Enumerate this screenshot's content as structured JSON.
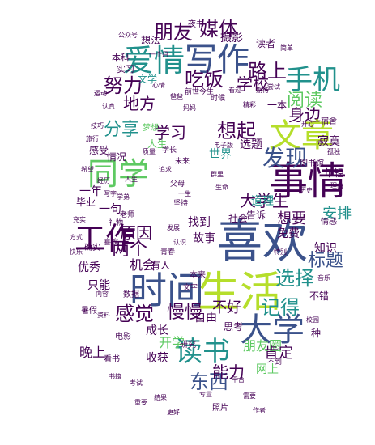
{
  "palette": {
    "dark_purple": "#440154",
    "indigo": "#3b528b",
    "teal": "#21918c",
    "green": "#5ec962",
    "yellow_green": "#b5de2b",
    "yellow": "#fde725"
  },
  "words": [
    {
      "text": "喜欢",
      "color": "#3b528b"
    },
    {
      "text": "事情",
      "color": "#440154"
    },
    {
      "text": "生活",
      "color": "#b5de2b"
    },
    {
      "text": "时间",
      "color": "#3b528b"
    },
    {
      "text": "写作",
      "color": "#3b528b"
    },
    {
      "text": "文章",
      "color": "#b5de2b"
    },
    {
      "text": "爱情",
      "color": "#21918c"
    },
    {
      "text": "工作",
      "color": "#440154"
    },
    {
      "text": "同学",
      "color": "#5ec962"
    },
    {
      "text": "大学",
      "color": "#3b528b"
    },
    {
      "text": "读书",
      "color": "#21918c"
    },
    {
      "text": "手机",
      "color": "#21918c"
    },
    {
      "text": "发现",
      "color": "#3b528b"
    },
    {
      "text": "媒体",
      "color": "#440154"
    },
    {
      "text": "朋友",
      "color": "#440154"
    },
    {
      "text": "吃饭",
      "color": "#440154"
    },
    {
      "text": "努力",
      "color": "#440154"
    },
    {
      "text": "分享",
      "color": "#21918c"
    },
    {
      "text": "路上",
      "color": "#440154"
    },
    {
      "text": "学校",
      "color": "#440154"
    },
    {
      "text": "阅读",
      "color": "#5ec962"
    },
    {
      "text": "身边",
      "color": "#440154"
    },
    {
      "text": "想起",
      "color": "#440154"
    },
    {
      "text": "地方",
      "color": "#440154"
    },
    {
      "text": "学习",
      "color": "#440154"
    },
    {
      "text": "大学生",
      "color": "#440154"
    },
    {
      "text": "想要",
      "color": "#440154"
    },
    {
      "text": "标题",
      "color": "#3b528b"
    },
    {
      "text": "选择",
      "color": "#21918c"
    },
    {
      "text": "记得",
      "color": "#21918c"
    },
    {
      "text": "两个",
      "color": "#440154"
    },
    {
      "text": "原因",
      "color": "#440154"
    },
    {
      "text": "感觉",
      "color": "#440154"
    },
    {
      "text": "慢慢",
      "color": "#440154"
    },
    {
      "text": "成长",
      "color": "#440154"
    },
    {
      "text": "不好",
      "color": "#440154"
    },
    {
      "text": "东西",
      "color": "#3b528b"
    },
    {
      "text": "能力",
      "color": "#440154"
    },
    {
      "text": "开学",
      "color": "#5ec962"
    },
    {
      "text": "朋友圈",
      "color": "#5ec962"
    },
    {
      "text": "肯定",
      "color": "#440154"
    },
    {
      "text": "机会",
      "color": "#440154"
    },
    {
      "text": "故事",
      "color": "#440154"
    },
    {
      "text": "找到",
      "color": "#440154"
    },
    {
      "text": "世界",
      "color": "#21918c"
    },
    {
      "text": "选题",
      "color": "#440154"
    },
    {
      "text": "知识",
      "color": "#440154"
    },
    {
      "text": "安排",
      "color": "#21918c"
    },
    {
      "text": "摄影",
      "color": "#440154"
    },
    {
      "text": "一种",
      "color": "#440154"
    },
    {
      "text": "晚上",
      "color": "#440154"
    },
    {
      "text": "收获",
      "color": "#440154"
    },
    {
      "text": "网上",
      "color": "#5ec962"
    },
    {
      "text": "有人",
      "color": "#440154"
    },
    {
      "text": "只能",
      "color": "#440154"
    },
    {
      "text": "优秀",
      "color": "#440154"
    },
    {
      "text": "一年",
      "color": "#440154"
    },
    {
      "text": "自由",
      "color": "#440154"
    },
    {
      "text": "道理",
      "color": "#21918c"
    },
    {
      "text": "社会",
      "color": "#440154"
    },
    {
      "text": "免费",
      "color": "#440154"
    },
    {
      "text": "一句",
      "color": "#440154"
    },
    {
      "text": "思考",
      "color": "#440154"
    },
    {
      "text": "人生",
      "color": "#5ec962"
    },
    {
      "text": "情况",
      "color": "#440154"
    },
    {
      "text": "感受",
      "color": "#440154"
    },
    {
      "text": "毕业",
      "color": "#440154"
    },
    {
      "text": "文学",
      "color": "#21918c"
    },
    {
      "text": "想法",
      "color": "#440154"
    },
    {
      "text": "实习",
      "color": "#440154"
    },
    {
      "text": "本科",
      "color": "#440154"
    },
    {
      "text": "读者",
      "color": "#440154"
    },
    {
      "text": "一本",
      "color": "#440154"
    },
    {
      "text": "年轻",
      "color": "#440154"
    },
    {
      "text": "寂寞",
      "color": "#440154"
    },
    {
      "text": "告诉",
      "color": "#440154"
    },
    {
      "text": "研究",
      "color": "#440154"
    },
    {
      "text": "照片",
      "color": "#440154"
    },
    {
      "text": "数据",
      "color": "#440154"
    },
    {
      "text": "电影",
      "color": "#440154"
    },
    {
      "text": "不错",
      "color": "#440154"
    },
    {
      "text": "看书",
      "color": "#440154"
    },
    {
      "text": "图书馆",
      "color": "#440154"
    },
    {
      "text": "宿舍",
      "color": "#440154"
    },
    {
      "text": "情感",
      "color": "#440154"
    },
    {
      "text": "本来",
      "color": "#440154"
    },
    {
      "text": "时候",
      "color": "#440154"
    },
    {
      "text": "文字",
      "color": "#440154"
    },
    {
      "text": "未来",
      "color": "#440154"
    },
    {
      "text": "学长",
      "color": "#440154"
    },
    {
      "text": "老师",
      "color": "#440154"
    },
    {
      "text": "梦想",
      "color": "#5ec962"
    },
    {
      "text": "坚持",
      "color": "#440154"
    },
    {
      "text": "父母",
      "color": "#440154"
    },
    {
      "text": "青春",
      "color": "#440154"
    },
    {
      "text": "喜欢",
      "color": "#440154"
    },
    {
      "text": "一个月",
      "color": "#440154"
    },
    {
      "text": "心情",
      "color": "#440154"
    },
    {
      "text": "认真",
      "color": "#440154"
    },
    {
      "text": "技巧",
      "color": "#440154"
    },
    {
      "text": "希望",
      "color": "#440154"
    },
    {
      "text": "方式",
      "color": "#440154"
    },
    {
      "text": "快乐",
      "color": "#440154"
    },
    {
      "text": "不到",
      "color": "#440154"
    },
    {
      "text": "平台",
      "color": "#440154"
    },
    {
      "text": "需要",
      "color": "#440154"
    },
    {
      "text": "作者",
      "color": "#440154"
    },
    {
      "text": "专业",
      "color": "#440154"
    },
    {
      "text": "结果",
      "color": "#440154"
    },
    {
      "text": "看过",
      "color": "#440154"
    },
    {
      "text": "期待",
      "color": "#440154"
    },
    {
      "text": "简单",
      "color": "#440154"
    },
    {
      "text": "爸爸",
      "color": "#440154"
    },
    {
      "text": "妈妈",
      "color": "#440154"
    },
    {
      "text": "历史",
      "color": "#440154"
    },
    {
      "text": "校园",
      "color": "#440154"
    },
    {
      "text": "音乐",
      "color": "#440154"
    },
    {
      "text": "理由",
      "color": "#440154"
    },
    {
      "text": "孤独",
      "color": "#440154"
    },
    {
      "text": "开心",
      "color": "#440154"
    },
    {
      "text": "公众号",
      "color": "#440154"
    },
    {
      "text": "运动",
      "color": "#440154"
    },
    {
      "text": "旅行",
      "color": "#440154"
    },
    {
      "text": "人生",
      "color": "#440154"
    },
    {
      "text": "经历",
      "color": "#440154"
    },
    {
      "text": "写字",
      "color": "#440154"
    },
    {
      "text": "礼物",
      "color": "#440154"
    },
    {
      "text": "内容",
      "color": "#440154"
    },
    {
      "text": "资料",
      "color": "#440154"
    },
    {
      "text": "书籍",
      "color": "#440154"
    },
    {
      "text": "考试",
      "color": "#440154"
    },
    {
      "text": "重要",
      "color": "#440154"
    },
    {
      "text": "更好",
      "color": "#440154"
    },
    {
      "text": "前世今生",
      "color": "#440154"
    },
    {
      "text": "电子版",
      "color": "#440154"
    },
    {
      "text": "夜书",
      "color": "#440154"
    },
    {
      "text": "尝试",
      "color": "#440154"
    },
    {
      "text": "精彩",
      "color": "#440154"
    },
    {
      "text": "暑假",
      "color": "#440154"
    },
    {
      "text": "确实",
      "color": "#440154"
    },
    {
      "text": "质量",
      "color": "#440154"
    },
    {
      "text": "追求",
      "color": "#440154"
    },
    {
      "text": "群里",
      "color": "#440154"
    },
    {
      "text": "生命",
      "color": "#440154"
    },
    {
      "text": "一生",
      "color": "#440154"
    },
    {
      "text": "发展",
      "color": "#440154"
    },
    {
      "text": "认识",
      "color": "#440154"
    },
    {
      "text": "特别",
      "color": "#440154"
    },
    {
      "text": "充实",
      "color": "#440154"
    },
    {
      "text": "学弟",
      "color": "#440154"
    }
  ]
}
